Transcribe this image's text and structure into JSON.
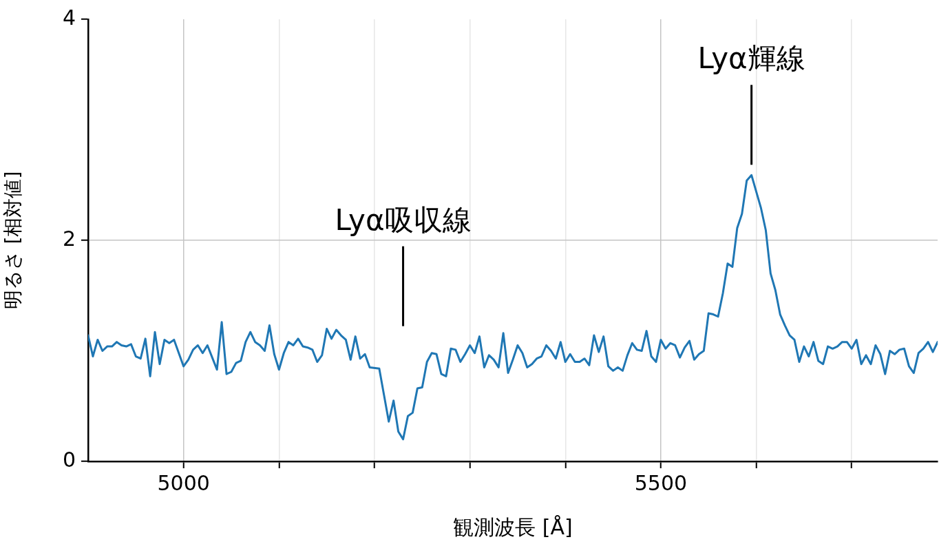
{
  "chart_data": {
    "type": "line",
    "xlabel": "観測波長 [Å]",
    "ylabel": "明るさ [相対値]",
    "x": [
      4900,
      4905,
      4910,
      4915,
      4920,
      4925,
      4930,
      4935,
      4940,
      4945,
      4950,
      4955,
      4960,
      4965,
      4970,
      4975,
      4980,
      4985,
      4990,
      4995,
      5000,
      5005,
      5010,
      5015,
      5020,
      5025,
      5030,
      5035,
      5040,
      5045,
      5050,
      5055,
      5060,
      5065,
      5070,
      5075,
      5080,
      5085,
      5090,
      5095,
      5100,
      5105,
      5110,
      5115,
      5120,
      5125,
      5130,
      5135,
      5140,
      5145,
      5150,
      5155,
      5160,
      5165,
      5170,
      5175,
      5180,
      5185,
      5190,
      5195,
      5205,
      5210,
      5215,
      5220,
      5225,
      5230,
      5235,
      5240,
      5245,
      5250,
      5255,
      5260,
      5265,
      5270,
      5275,
      5280,
      5285,
      5290,
      5295,
      5300,
      5305,
      5310,
      5315,
      5320,
      5325,
      5330,
      5335,
      5340,
      5345,
      5350,
      5355,
      5360,
      5365,
      5370,
      5375,
      5380,
      5385,
      5390,
      5395,
      5400,
      5405,
      5410,
      5415,
      5420,
      5425,
      5430,
      5435,
      5440,
      5445,
      5450,
      5455,
      5460,
      5465,
      5470,
      5475,
      5480,
      5485,
      5490,
      5495,
      5500,
      5505,
      5510,
      5515,
      5520,
      5525,
      5530,
      5535,
      5540,
      5545,
      5550,
      5555,
      5560,
      5565,
      5570,
      5575,
      5580,
      5585,
      5590,
      5595,
      5600,
      5605,
      5610,
      5615,
      5620,
      5625,
      5630,
      5635,
      5640,
      5645,
      5650,
      5655,
      5660,
      5665,
      5670,
      5675,
      5680,
      5685,
      5690,
      5695,
      5700,
      5705,
      5710,
      5715,
      5720,
      5725,
      5730,
      5735,
      5740,
      5745,
      5750,
      5755,
      5760,
      5765,
      5770,
      5775,
      5780,
      5785,
      5790
    ],
    "series": [
      {
        "color": "#1f77b4",
        "values": [
          1.14,
          0.95,
          1.1,
          1.0,
          1.04,
          1.04,
          1.08,
          1.05,
          1.04,
          1.06,
          0.95,
          0.93,
          1.11,
          0.77,
          1.17,
          0.88,
          1.1,
          1.07,
          1.1,
          0.98,
          0.86,
          0.92,
          1.01,
          1.05,
          0.98,
          1.05,
          0.94,
          0.83,
          1.26,
          0.79,
          0.81,
          0.89,
          0.91,
          1.08,
          1.17,
          1.08,
          1.05,
          1.0,
          1.23,
          0.97,
          0.83,
          0.98,
          1.08,
          1.05,
          1.11,
          1.04,
          1.03,
          1.01,
          0.9,
          0.96,
          1.2,
          1.11,
          1.19,
          1.14,
          1.1,
          0.92,
          1.13,
          0.93,
          0.97,
          0.85,
          0.84,
          0.6,
          0.36,
          0.55,
          0.27,
          0.2,
          0.41,
          0.44,
          0.66,
          0.67,
          0.9,
          0.98,
          0.97,
          0.79,
          0.77,
          1.02,
          1.01,
          0.9,
          0.97,
          1.05,
          0.98,
          1.13,
          0.85,
          0.96,
          0.92,
          0.85,
          1.16,
          0.8,
          0.92,
          1.05,
          0.98,
          0.85,
          0.88,
          0.93,
          0.95,
          1.05,
          1.0,
          0.93,
          1.08,
          0.9,
          0.97,
          0.9,
          0.9,
          0.93,
          0.87,
          1.14,
          0.99,
          1.13,
          0.86,
          0.82,
          0.85,
          0.82,
          0.96,
          1.07,
          1.01,
          1.0,
          1.18,
          0.95,
          0.9,
          1.1,
          1.02,
          1.07,
          1.05,
          0.94,
          1.03,
          1.09,
          0.92,
          0.97,
          1.0,
          1.34,
          1.33,
          1.31,
          1.52,
          1.79,
          1.76,
          2.11,
          2.24,
          2.54,
          2.59,
          2.44,
          2.29,
          2.09,
          1.7,
          1.55,
          1.33,
          1.23,
          1.14,
          1.1,
          0.9,
          1.04,
          0.95,
          1.08,
          0.91,
          0.88,
          1.04,
          1.02,
          1.04,
          1.08,
          1.08,
          1.02,
          1.1,
          0.88,
          0.96,
          0.88,
          1.05,
          0.97,
          0.79,
          1.0,
          0.97,
          1.01,
          1.02,
          0.86,
          0.8,
          0.98,
          1.02,
          1.08,
          0.99,
          1.08
        ]
      }
    ],
    "xlim": [
      4900,
      5790
    ],
    "xticks": [
      {
        "value": 5000,
        "label": "5000"
      },
      {
        "value": 5100,
        "label": null
      },
      {
        "value": 5200,
        "label": null
      },
      {
        "value": 5300,
        "label": null
      },
      {
        "value": 5400,
        "label": null
      },
      {
        "value": 5500,
        "label": "5500"
      },
      {
        "value": 5600,
        "label": null
      },
      {
        "value": 5700,
        "label": null
      }
    ],
    "ylim": [
      0,
      4
    ],
    "yticks": [
      0,
      2,
      4
    ],
    "grid": true,
    "marker": "none",
    "line_style": "solid",
    "legend": false,
    "annotations": [
      "Lyα吸収線",
      "Lyα輝線"
    ]
  }
}
